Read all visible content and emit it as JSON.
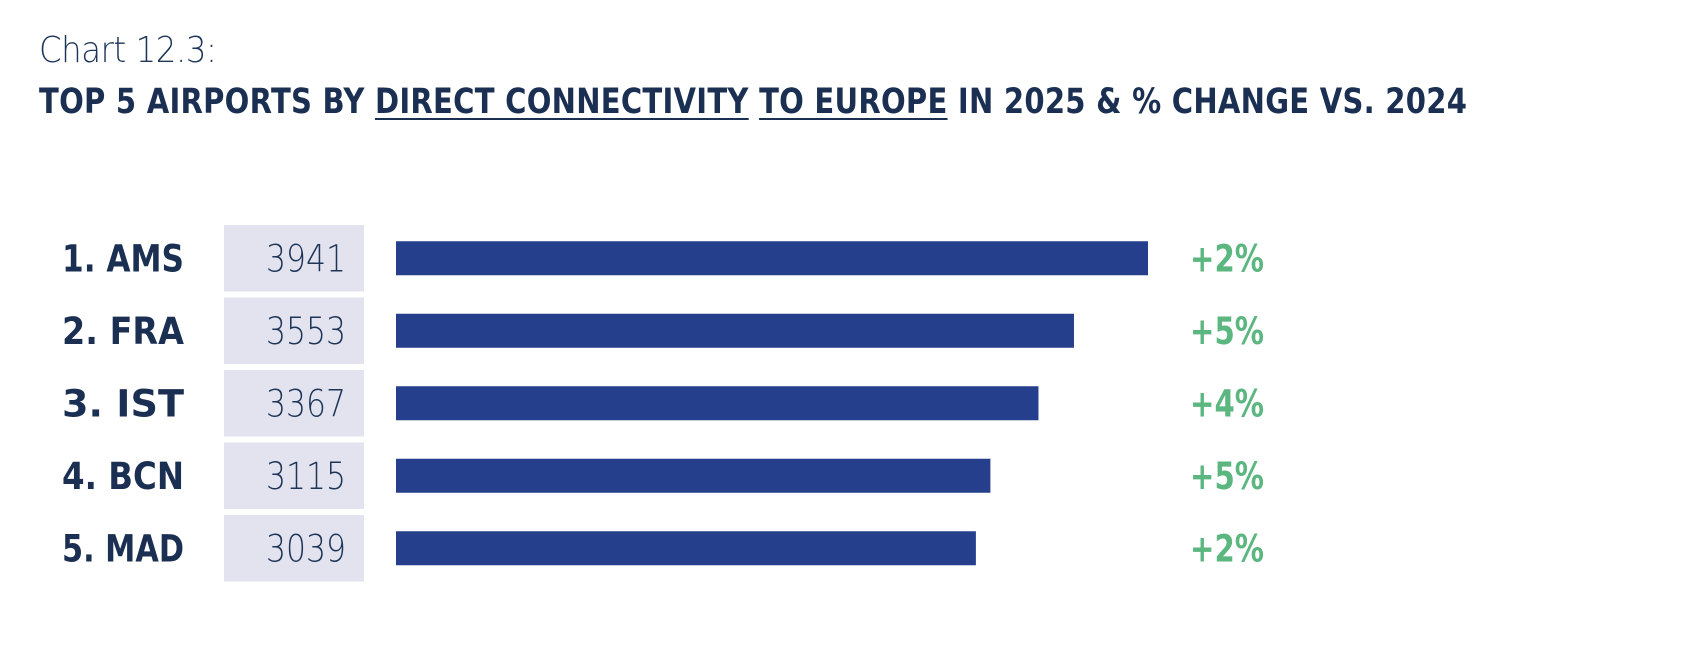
{
  "header": {
    "chart_number": "Chart 12.3:",
    "title_part1": "TOP 5 AIRPORTS BY ",
    "title_ul1": "DIRECT CONNECTIVITY",
    "title_gap": " ",
    "title_ul2": "TO EUROPE",
    "title_part2": " IN 2025 & % CHANGE VS. 2024"
  },
  "colors": {
    "bar": "#263f8c",
    "value_box": "#e2e3ef",
    "change_positive": "#5bb67f",
    "text_dark": "#1b2f52"
  },
  "chart_data": {
    "type": "bar",
    "orientation": "horizontal",
    "title": "TOP 5 AIRPORTS BY DIRECT CONNECTIVITY TO EUROPE IN 2025 & % CHANGE VS. 2024",
    "categories": [
      "1. AMS",
      "2. FRA",
      "3. IST",
      "4. BCN",
      "5. MAD"
    ],
    "values": [
      3941,
      3553,
      3367,
      3115,
      3039
    ],
    "value_labels": [
      "3941",
      "3553",
      "3367",
      "3115",
      "3039"
    ],
    "changes": [
      "+2%",
      "+5%",
      "+4%",
      "+5%",
      "+2%"
    ],
    "xlim": [
      0,
      3941
    ],
    "grid": false,
    "legend": "none"
  }
}
